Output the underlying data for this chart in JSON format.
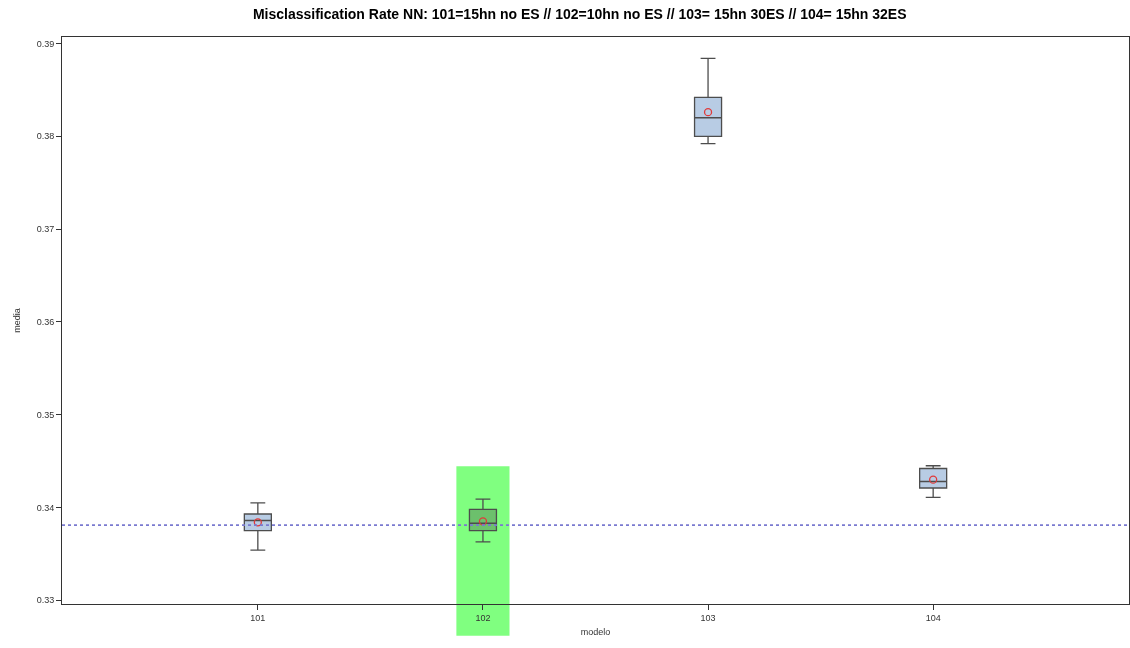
{
  "chart_data": {
    "type": "box",
    "title": "Misclassification Rate NN: 101=15hn no ES // 102=10hn no ES // 103= 15hn 30ES // 104= 15hn 32ES",
    "xlabel": "modelo",
    "ylabel": "media",
    "categories": [
      "101",
      "102",
      "103",
      "104"
    ],
    "boxes": [
      {
        "low": 0.3354,
        "q1": 0.3375,
        "median": 0.3386,
        "q3": 0.3393,
        "high": 0.3405,
        "mean": 0.3384
      },
      {
        "low": 0.3363,
        "q1": 0.3375,
        "median": 0.3383,
        "q3": 0.3398,
        "high": 0.3409,
        "mean": 0.3385
      },
      {
        "low": 0.3792,
        "q1": 0.38,
        "median": 0.382,
        "q3": 0.3842,
        "high": 0.3884,
        "mean": 0.3826
      },
      {
        "low": 0.3411,
        "q1": 0.3421,
        "median": 0.3428,
        "q3": 0.3442,
        "high": 0.3445,
        "mean": 0.343
      }
    ],
    "colors": [
      "#b8cce4",
      "#6cc06c",
      "#b8cce4",
      "#b8cce4"
    ],
    "ylim": [
      0.3296,
      0.3907
    ],
    "yticks": [
      0.33,
      0.34,
      0.35,
      0.36,
      0.37,
      0.38,
      0.39
    ],
    "ref_lines": [
      {
        "axis": "y",
        "value": 0.3381,
        "color": "#7a7ad0",
        "line_style": "dotted"
      }
    ],
    "bands": [
      {
        "axis": "x",
        "from": "102",
        "to": "102",
        "color": "#80ff80"
      }
    ]
  }
}
